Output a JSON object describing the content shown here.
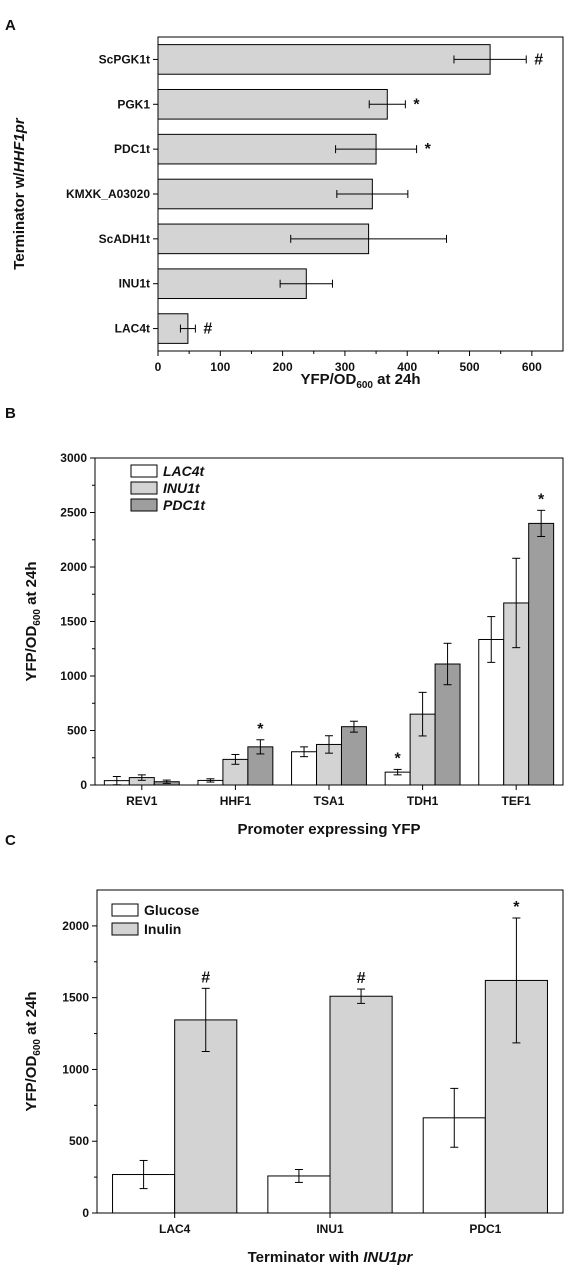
{
  "chart_data": [
    {
      "panel": "A",
      "type": "bar",
      "orientation": "horizontal",
      "ylabel_parts": [
        {
          "t": "Terminator w/",
          "i": false
        },
        {
          "t": "HHF1pr",
          "i": true
        }
      ],
      "xlabel_parts": [
        {
          "t": "YFP/OD",
          "sub": false
        },
        {
          "t": "600",
          "sub": true
        },
        {
          "t": " at 24h",
          "sub": false
        }
      ],
      "xlim": [
        0,
        650
      ],
      "xticks": [
        0,
        100,
        200,
        300,
        400,
        500,
        600
      ],
      "xtick_labels": [
        "0",
        "100",
        "200",
        "300",
        "400",
        "500",
        "600"
      ],
      "categories": [
        "ScPGK1t",
        "PGK1",
        "PDC1t",
        "KMXK_A03020",
        "ScADH1t",
        "INU1t",
        "LAC4t"
      ],
      "values": [
        533,
        368,
        350,
        344,
        338,
        238,
        48
      ],
      "errors": [
        58,
        29,
        65,
        57,
        125,
        42,
        12
      ],
      "annotations": [
        "#",
        "*",
        "*",
        "",
        "",
        "",
        "#"
      ],
      "colors": {
        "bar": "#d4d4d4"
      }
    },
    {
      "panel": "B",
      "type": "bar",
      "ylabel_parts": [
        {
          "t": "YFP/OD",
          "sub": false
        },
        {
          "t": "600",
          "sub": true
        },
        {
          "t": " at 24h",
          "sub": false
        }
      ],
      "xlabel": "Promoter expressing YFP",
      "ylim": [
        0,
        3000
      ],
      "yticks": [
        0,
        500,
        1000,
        1500,
        2000,
        2500,
        3000
      ],
      "ytick_labels": [
        "0",
        "500",
        "1000",
        "1500",
        "2000",
        "2500",
        "3000"
      ],
      "categories": [
        "REV1",
        "HHF1",
        "TSA1",
        "TDH1",
        "TEF1"
      ],
      "series": [
        {
          "name": "LAC4t",
          "color": "#ffffff",
          "values": [
            40,
            42,
            305,
            118,
            1335
          ],
          "errors": [
            38,
            15,
            45,
            25,
            210
          ],
          "annotations": [
            "",
            "",
            "",
            "*",
            ""
          ]
        },
        {
          "name": "INU1t",
          "color": "#d3d3d3",
          "values": [
            68,
            235,
            372,
            650,
            1670
          ],
          "errors": [
            25,
            45,
            80,
            200,
            410
          ],
          "annotations": [
            "",
            "",
            "",
            "",
            ""
          ]
        },
        {
          "name": "PDC1t",
          "color": "#9e9e9e",
          "values": [
            30,
            350,
            535,
            1110,
            2400
          ],
          "errors": [
            15,
            65,
            50,
            190,
            120
          ],
          "annotations": [
            "",
            "*",
            "",
            "",
            "*"
          ]
        }
      ],
      "legend_italic": true,
      "legend_position": "top-left"
    },
    {
      "panel": "C",
      "type": "bar",
      "ylabel_parts": [
        {
          "t": "YFP/OD",
          "sub": false
        },
        {
          "t": "600",
          "sub": true
        },
        {
          "t": " at 24h",
          "sub": false
        }
      ],
      "xlabel_parts": [
        {
          "t": "Terminator with ",
          "i": false
        },
        {
          "t": "INU1pr",
          "i": true
        }
      ],
      "ylim": [
        0,
        2250
      ],
      "yticks": [
        0,
        500,
        1000,
        1500,
        2000
      ],
      "ytick_labels": [
        "0",
        "500",
        "1000",
        "1500",
        "2000"
      ],
      "categories": [
        "LAC4",
        "INU1",
        "PDC1"
      ],
      "series": [
        {
          "name": "Glucose",
          "color": "#ffffff",
          "values": [
            268,
            258,
            663
          ],
          "errors": [
            98,
            45,
            205
          ],
          "annotations": [
            "",
            "",
            ""
          ]
        },
        {
          "name": "Inulin",
          "color": "#d3d3d3",
          "values": [
            1345,
            1510,
            1620
          ],
          "errors": [
            220,
            50,
            435
          ],
          "annotations": [
            "#",
            "#",
            "*"
          ]
        }
      ],
      "legend_italic": false,
      "legend_position": "top-left"
    }
  ]
}
